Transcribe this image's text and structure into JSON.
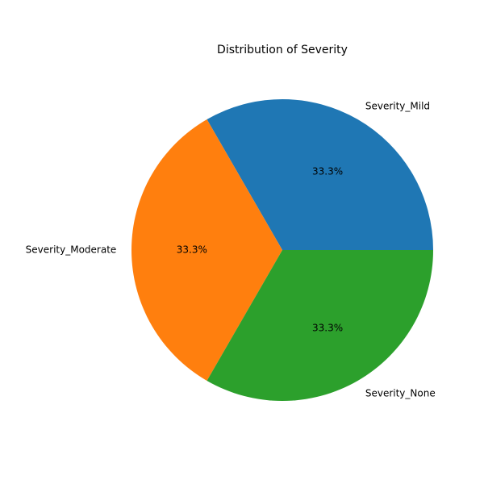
{
  "chart_data": {
    "type": "pie",
    "title": "Distribution of Severity",
    "slices": [
      {
        "label": "Severity_Mild",
        "value": 33.3,
        "pct_label": "33.3%",
        "color": "#1f77b4"
      },
      {
        "label": "Severity_Moderate",
        "value": 33.3,
        "pct_label": "33.3%",
        "color": "#ff7f0e"
      },
      {
        "label": "Severity_None",
        "value": 33.3,
        "pct_label": "33.3%",
        "color": "#2ca02c"
      }
    ],
    "start_angle_deg": 0,
    "direction": "counterclockwise",
    "legend": "none"
  }
}
